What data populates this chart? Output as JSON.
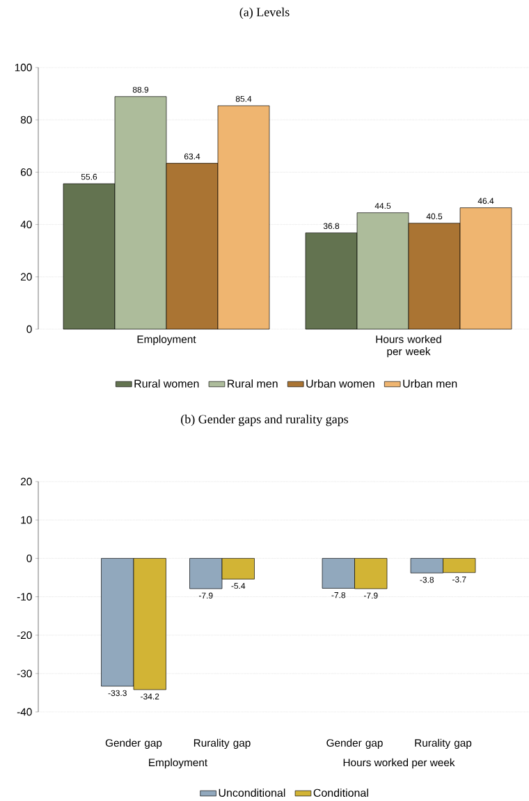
{
  "chart_data": [
    {
      "type": "bar",
      "title": "(a) Levels",
      "categories": [
        "Employment",
        "Hours worked per week"
      ],
      "series": [
        {
          "name": "Rural women",
          "color": "#637350",
          "values": [
            55.6,
            36.8
          ]
        },
        {
          "name": "Rural men",
          "color": "#adbc9b",
          "values": [
            88.9,
            44.5
          ]
        },
        {
          "name": "Urban women",
          "color": "#aa7433",
          "values": [
            63.4,
            40.5
          ]
        },
        {
          "name": "Urban men",
          "color": "#efb570",
          "values": [
            85.4,
            46.4
          ]
        }
      ],
      "ylim": [
        0,
        100
      ],
      "yticks": [
        0,
        20,
        40,
        60,
        80,
        100
      ],
      "grid": "y",
      "legend": "bottom",
      "data_labels": true
    },
    {
      "type": "bar",
      "title": "(b) Gender gaps and rurality gaps",
      "categories": [
        "Gender gap",
        "Rurality gap",
        "Gender gap",
        "Rurality gap"
      ],
      "series": [
        {
          "name": "Unconditional",
          "color": "#91a8bd",
          "values": [
            -33.3,
            -7.9,
            -7.8,
            -3.8
          ]
        },
        {
          "name": "Conditional",
          "color": "#d2b435",
          "values": [
            -34.2,
            -5.4,
            -7.9,
            -3.7
          ]
        }
      ],
      "ylim": [
        -40,
        20
      ],
      "yticks": [
        -40,
        -30,
        -20,
        -10,
        0,
        10,
        20
      ],
      "grid": "y",
      "legend": "bottom",
      "data_labels": true,
      "annotations": [
        "Employment",
        "Hours worked per week"
      ]
    }
  ]
}
